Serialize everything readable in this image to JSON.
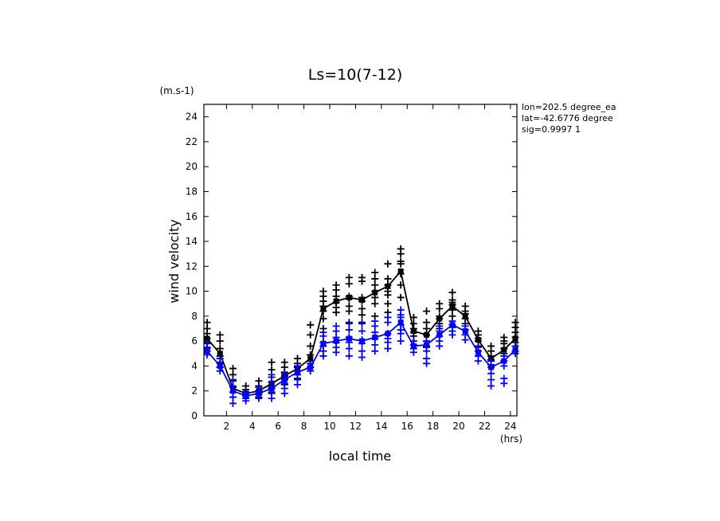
{
  "chart_data": {
    "type": "scatter",
    "title": "Ls=10(7-12)",
    "ylabel": "wind velocity",
    "yunit": "(m.s-1)",
    "xlabel": "local time",
    "xunit": "(hrs)",
    "xlim": [
      0.25,
      24.5
    ],
    "ylim": [
      0,
      25
    ],
    "xticks": [
      2,
      4,
      6,
      8,
      10,
      12,
      14,
      16,
      18,
      20,
      22,
      24
    ],
    "yticks": [
      0,
      2,
      4,
      6,
      8,
      10,
      12,
      14,
      16,
      18,
      20,
      22,
      24
    ],
    "info": [
      "lon=202.5 degree_ea",
      "lat=-42.6776 degree",
      "sig=0.9997 1"
    ],
    "x": [
      0.5,
      1.5,
      2.5,
      3.5,
      4.5,
      5.5,
      6.5,
      7.5,
      8.5,
      9.5,
      10.5,
      11.5,
      12.5,
      13.5,
      14.5,
      15.5,
      16.5,
      17.5,
      18.5,
      19.5,
      20.5,
      21.5,
      22.5,
      23.5,
      24.5
    ],
    "series": [
      {
        "color": "#000000",
        "mean": [
          6.2,
          5.0,
          2.2,
          1.8,
          2.0,
          2.6,
          3.2,
          3.8,
          4.6,
          8.6,
          9.2,
          9.5,
          9.3,
          9.9,
          10.4,
          11.6,
          6.8,
          6.5,
          7.8,
          8.8,
          8.0,
          6.1,
          4.6,
          5.3,
          6.2
        ],
        "points": [
          [
            7.5,
            7.0,
            6.6,
            6.2,
            5.9,
            5.5
          ],
          [
            6.5,
            6.0,
            5.4,
            4.8,
            4.3,
            3.9
          ],
          [
            3.8,
            3.3,
            2.8,
            2.3,
            1.9,
            1.5
          ],
          [
            2.4,
            2.1,
            1.8,
            1.6,
            1.4
          ],
          [
            2.8,
            2.4,
            2.0,
            1.8,
            1.5
          ],
          [
            4.3,
            3.7,
            3.1,
            2.7,
            2.3,
            1.9
          ],
          [
            4.3,
            3.9,
            3.5,
            3.2,
            2.9,
            2.5
          ],
          [
            4.6,
            4.2,
            3.9,
            3.6,
            3.3,
            3.0
          ],
          [
            7.3,
            6.5,
            5.6,
            4.9,
            4.4,
            3.9
          ],
          [
            10.0,
            9.6,
            9.2,
            8.8,
            8.4,
            7.8,
            7.0
          ],
          [
            10.5,
            10.1,
            9.6,
            9.1,
            8.7,
            8.3
          ],
          [
            11.1,
            10.6,
            9.6,
            9.4,
            8.8,
            8.4,
            7.5
          ],
          [
            11.1,
            10.8,
            9.5,
            9.2,
            8.6,
            8.1,
            7.5
          ],
          [
            11.5,
            11.0,
            10.5,
            10.0,
            9.5,
            9.0,
            8.0
          ],
          [
            12.2,
            11.0,
            10.5,
            10.0,
            9.7,
            9.0,
            8.3
          ],
          [
            13.4,
            13.0,
            12.4,
            12.2,
            11.4,
            10.5,
            9.5
          ],
          [
            7.9,
            7.4,
            7.0,
            6.7,
            6.4,
            6.0
          ],
          [
            8.4,
            7.5,
            7.0,
            6.5,
            6.0,
            5.5
          ],
          [
            9.0,
            8.6,
            8.0,
            7.8,
            7.4,
            7.0
          ],
          [
            9.9,
            9.3,
            9.1,
            8.9,
            8.5,
            8.0
          ],
          [
            8.8,
            8.4,
            8.2,
            7.8,
            7.4
          ],
          [
            6.8,
            6.5,
            6.2,
            6.0,
            5.6
          ],
          [
            5.6,
            5.2,
            4.8,
            4.5,
            4.1
          ],
          [
            6.3,
            6.0,
            5.8,
            5.4,
            5.0
          ],
          [
            7.5,
            7.1,
            6.7,
            6.3,
            5.9
          ]
        ]
      },
      {
        "color": "#0000ff",
        "mean": [
          5.2,
          4.0,
          2.0,
          1.6,
          1.8,
          2.2,
          2.9,
          3.5,
          3.9,
          5.8,
          6.0,
          6.2,
          6.0,
          6.3,
          6.6,
          7.5,
          5.6,
          5.7,
          6.5,
          7.3,
          6.8,
          5.1,
          3.9,
          4.4,
          5.3
        ],
        "points": [
          [
            5.8,
            5.4,
            5.2,
            4.9
          ],
          [
            4.6,
            4.2,
            3.9,
            3.6
          ],
          [
            2.9,
            2.4,
            1.9,
            1.5,
            1.0
          ],
          [
            1.9,
            1.6,
            1.4,
            1.2
          ],
          [
            2.3,
            2.0,
            1.7,
            1.4
          ],
          [
            3.3,
            2.7,
            2.2,
            1.8,
            1.4
          ],
          [
            3.4,
            3.0,
            2.6,
            2.2,
            1.8
          ],
          [
            4.0,
            3.6,
            3.3,
            2.9,
            2.5
          ],
          [
            4.2,
            3.9,
            3.6
          ],
          [
            6.7,
            6.4,
            5.9,
            5.6,
            5.2,
            4.8
          ],
          [
            7.2,
            6.8,
            6.3,
            5.9,
            5.5,
            5.1
          ],
          [
            7.4,
            6.9,
            6.3,
            5.9,
            5.4,
            4.8
          ],
          [
            7.4,
            6.8,
            6.1,
            5.8,
            5.2,
            4.7
          ],
          [
            7.6,
            7.2,
            6.7,
            6.2,
            5.7,
            5.2
          ],
          [
            7.9,
            7.5,
            6.6,
            6.2,
            5.9,
            5.4
          ],
          [
            8.5,
            8.1,
            7.9,
            7.3,
            6.9,
            6.6,
            6.0
          ],
          [
            6.0,
            5.7,
            5.4,
            5.1
          ],
          [
            6.0,
            5.6,
            5.2,
            4.6,
            4.2
          ],
          [
            7.2,
            6.8,
            6.4,
            6.0,
            5.6
          ],
          [
            7.6,
            7.3,
            7.1,
            6.8,
            6.5
          ],
          [
            7.2,
            6.9,
            6.5,
            6.1
          ],
          [
            5.5,
            5.2,
            4.8,
            4.4
          ],
          [
            4.4,
            3.9,
            3.4,
            2.9,
            2.4
          ],
          [
            4.8,
            4.4,
            4.0,
            3.0,
            2.6
          ],
          [
            5.6,
            5.2,
            5.0
          ]
        ]
      }
    ]
  }
}
